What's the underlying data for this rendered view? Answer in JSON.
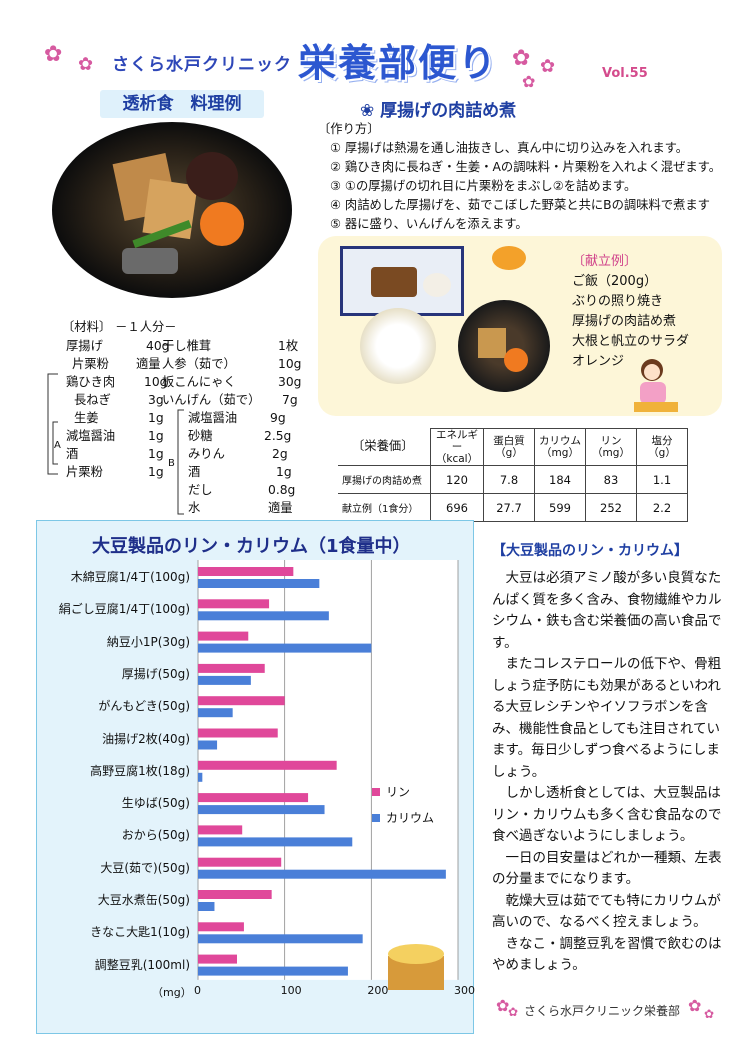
{
  "header": {
    "clinic": "さくら水戸クリニック",
    "newsletter": "栄養部便り",
    "volume": "Vol.55"
  },
  "dish": {
    "section_label": "透析食　料理例",
    "recipe_title": "❀ 厚揚げの肉詰め煮",
    "steps_label": "〔作り方〕",
    "steps": [
      "① 厚揚げは熱湯を通し油抜きし、真ん中に切り込みを入れます。",
      "② 鶏ひき肉に長ねぎ・生姜・Aの調味料・片栗粉を入れよく混ぜます。",
      "③ ①の厚揚げの切れ目に片栗粉をまぶし②を詰めます。",
      "④ 肉詰めした厚揚げを、茹でこぼした野菜と共にBの調味料で煮ます",
      "⑤ 器に盛り、いんげんを添えます。"
    ]
  },
  "menu": {
    "title": "〔献立例〕",
    "items": [
      "ご飯（200g）",
      "ぶりの照り焼き",
      "厚揚げの肉詰め煮",
      "大根と帆立のサラダ",
      "オレンジ"
    ]
  },
  "ingredients": {
    "title": "〔材料〕 －１人分－",
    "group_a": "A",
    "group_b": "B",
    "left": [
      {
        "name": "厚揚げ",
        "amount": "40g"
      },
      {
        "name": "片栗粉",
        "amount": "適量"
      },
      {
        "name": "鶏ひき肉",
        "amount": "10g"
      },
      {
        "name": "長ねぎ",
        "amount": "3g"
      },
      {
        "name": "生姜",
        "amount": "1g"
      },
      {
        "name": "減塩醤油",
        "amount": "1g"
      },
      {
        "name": "酒",
        "amount": "1g"
      },
      {
        "name": "片栗粉",
        "amount": "1g"
      }
    ],
    "right": [
      {
        "name": "干し椎茸",
        "amount": "1枚"
      },
      {
        "name": "人参（茹で）",
        "amount": "10g"
      },
      {
        "name": "板こんにゃく",
        "amount": "30g"
      },
      {
        "name": "いんげん（茹で）",
        "amount": "7g"
      },
      {
        "name": "減塩醤油",
        "amount": "9g"
      },
      {
        "name": "砂糖",
        "amount": "2.5g"
      },
      {
        "name": "みりん",
        "amount": "2g"
      },
      {
        "name": "酒",
        "amount": "1g"
      },
      {
        "name": "だし",
        "amount": "0.8g"
      },
      {
        "name": "水",
        "amount": "適量"
      }
    ]
  },
  "nutrition": {
    "label": "〔栄養価〕",
    "headers": [
      "エネルギー\n（kcal）",
      "蛋白質\n（g）",
      "カリウム\n（mg）",
      "リン\n（mg）",
      "塩分\n（g）"
    ],
    "rows": [
      {
        "name": "厚揚げの肉詰め煮",
        "values": [
          "120",
          "7.8",
          "184",
          "83",
          "1.1"
        ]
      },
      {
        "name": "献立例（1食分）",
        "values": [
          "696",
          "27.7",
          "599",
          "252",
          "2.2"
        ]
      }
    ]
  },
  "chart_data": {
    "type": "bar",
    "title": "大豆製品のリン・カリウム（1食量中）",
    "ylabel": "（mg）",
    "categories": [
      "木綿豆腐1/4丁(100g)",
      "絹ごし豆腐1/4丁(100g)",
      "納豆小1P(30g)",
      "厚揚げ(50g)",
      "がんもどき(50g)",
      "油揚げ2枚(40g)",
      "高野豆腐1枚(18g)",
      "生ゆば(50g)",
      "おから(50g)",
      "大豆(茹で)(50g)",
      "大豆水煮缶(50g)",
      "きなこ大匙1(10g)",
      "調整豆乳(100ml)"
    ],
    "series": [
      {
        "name": "リン",
        "color": "#e0489a",
        "values": [
          110,
          82,
          58,
          77,
          100,
          92,
          160,
          127,
          51,
          96,
          85,
          53,
          45
        ]
      },
      {
        "name": "カリウム",
        "color": "#4a7fd8",
        "values": [
          140,
          151,
          200,
          61,
          40,
          22,
          5,
          146,
          178,
          286,
          19,
          190,
          173
        ]
      }
    ],
    "xlim": [
      0,
      300
    ],
    "ticks": [
      "0",
      "100",
      "200",
      "300"
    ],
    "grid": true,
    "legend": "right"
  },
  "info": {
    "title": "【大豆製品のリン・カリウム】",
    "paragraphs": [
      "大豆は必須アミノ酸が多い良質なたんぱく質を多く含み、食物繊維やカルシウム・鉄も含む栄養価の高い食品です。",
      "またコレステロールの低下や、骨粗しょう症予防にも効果があるといわれる大豆レシチンやイソフラボンを含み、機能性食品としても注目されています。毎日少しずつ食べるようにしましょう。",
      "しかし透析食としては、大豆製品はリン・カリウムも多く含む食品なので食べ過ぎないようにしましょう。",
      "一日の目安量はどれか一種類、左表の分量までになります。",
      "乾燥大豆は茹でても特にカリウムが高いので、なるべく控えましょう。",
      "きなこ・調整豆乳を習慣で飲むのはやめましょう。"
    ]
  },
  "footer": {
    "text": "さくら水戸クリニック栄養部"
  }
}
